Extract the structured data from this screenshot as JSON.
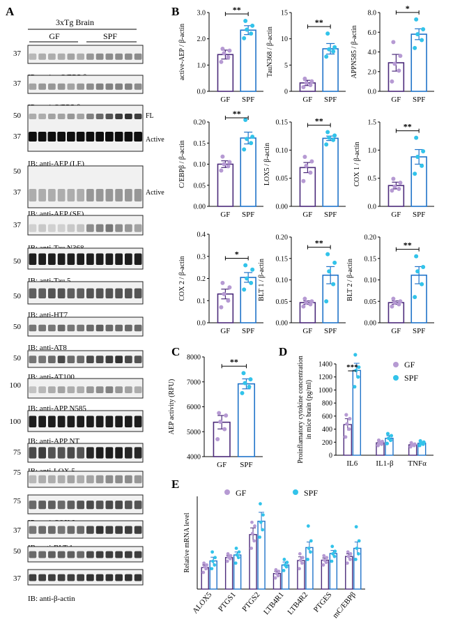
{
  "colors": {
    "gf": "#4b2a7a",
    "gf_dot": "#b69ad3",
    "spf": "#1f73c9",
    "spf_dot": "#32c3ea",
    "blot_dark": "#111111"
  },
  "panelA": {
    "letter": "A",
    "header": {
      "top": "3xTg   Brain",
      "gf": "GF",
      "spf": "SPF"
    },
    "blots": [
      {
        "labels": [
          "IB: anti-p-C/EBP β"
        ],
        "marks": [
          "37"
        ]
      },
      {
        "labels": [
          "IB: anti-C/EBP β"
        ],
        "marks": [
          "37"
        ]
      },
      {
        "labels": [
          "IB: anti-AEP (LE)"
        ],
        "marks": [
          "50",
          "37"
        ],
        "side": [
          "FL",
          "Active"
        ]
      },
      {
        "labels": [
          "IB: anti-AEP (SE)"
        ],
        "marks": [
          "50",
          "37"
        ],
        "side": [
          "",
          "Active"
        ]
      },
      {
        "labels": [
          "IB: anti-Tau N368"
        ],
        "marks": [
          "37"
        ]
      },
      {
        "labels": [
          "IB: anti-Tau 5"
        ],
        "marks": [
          "50"
        ]
      },
      {
        "labels": [
          "IB: anti-HT7"
        ],
        "marks": [
          "50"
        ]
      },
      {
        "labels": [
          "IB: anti-AT8"
        ],
        "marks": [
          "50"
        ]
      },
      {
        "labels": [
          "IB: anti-AT100"
        ],
        "marks": [
          "50"
        ]
      },
      {
        "labels": [
          "IB: anti-APP N585"
        ],
        "marks": [
          "100"
        ]
      },
      {
        "labels": [
          "IB: anti-APP NT"
        ],
        "marks": [
          "100"
        ]
      },
      {
        "labels": [
          "IB: anti-LOX 5"
        ],
        "marks": [
          "75"
        ]
      },
      {
        "labels": [
          "IB: anti-COX 1"
        ],
        "marks": [
          "75"
        ]
      },
      {
        "labels": [
          "IB: anti-COX 2"
        ],
        "marks": [
          "75"
        ]
      },
      {
        "labels": [
          "IB: anti-BLT 1"
        ],
        "marks": [
          "37"
        ]
      },
      {
        "labels": [
          "IB: anti-BLT 2"
        ],
        "marks": [
          "50"
        ]
      },
      {
        "labels": [
          "IB: anti-β-actin"
        ],
        "marks": [
          "37"
        ]
      }
    ]
  },
  "panel_letters": {
    "B": "B",
    "C": "C",
    "D": "D",
    "E": "E"
  },
  "chart_data": [
    {
      "id": "B1",
      "type": "bar",
      "ylabel": "active-AEP / β-actin",
      "categories": [
        "GF",
        "SPF"
      ],
      "yticks": [
        "0.0",
        "1.0",
        "2.0",
        "3.0"
      ],
      "ylim": [
        0,
        3
      ],
      "values": [
        1.4,
        2.33
      ],
      "errors": [
        0.17,
        0.17
      ],
      "points": [
        [
          1.12,
          1.3,
          1.45,
          1.55,
          1.62
        ],
        [
          2.02,
          2.2,
          2.35,
          2.5,
          2.68
        ]
      ],
      "sig": "**"
    },
    {
      "id": "B2",
      "type": "bar",
      "ylabel": "TauN368 / β-actin",
      "categories": [
        "GF",
        "SPF"
      ],
      "yticks": [
        "0",
        "5",
        "10",
        "15"
      ],
      "ylim": [
        0,
        15
      ],
      "values": [
        1.6,
        8.1
      ],
      "errors": [
        0.5,
        1.0
      ],
      "points": [
        [
          0.8,
          1.2,
          1.6,
          1.9,
          2.4
        ],
        [
          6.6,
          7.6,
          8.0,
          8.4,
          11.0
        ]
      ],
      "sig": "**"
    },
    {
      "id": "B3",
      "type": "bar",
      "ylabel": "APPN585 / β-actin",
      "categories": [
        "GF",
        "SPF"
      ],
      "yticks": [
        "0.0",
        "2.0",
        "4.0",
        "6.0",
        "8.0"
      ],
      "ylim": [
        0,
        8
      ],
      "values": [
        2.9,
        5.8
      ],
      "errors": [
        0.85,
        0.55
      ],
      "points": [
        [
          1.0,
          2.1,
          2.8,
          3.6,
          5.0
        ],
        [
          4.4,
          5.2,
          5.8,
          6.3,
          7.3
        ]
      ],
      "sig": "*"
    },
    {
      "id": "B4",
      "type": "bar",
      "ylabel": "C/EBPβ / β-actin",
      "categories": [
        "GF",
        "SPF"
      ],
      "yticks": [
        "0.00",
        "0.05",
        "0.10",
        "0.15",
        "0.20"
      ],
      "ylim": [
        0,
        0.2
      ],
      "values": [
        0.1,
        0.162
      ],
      "errors": [
        0.008,
        0.014
      ],
      "points": [
        [
          0.085,
          0.095,
          0.1,
          0.105,
          0.118
        ],
        [
          0.135,
          0.15,
          0.16,
          0.165,
          0.205
        ]
      ],
      "sig": "**"
    },
    {
      "id": "B5",
      "type": "bar",
      "ylabel": "LOX5 / β-actin",
      "categories": [
        "GF",
        "SPF"
      ],
      "yticks": [
        "0.00",
        "0.05",
        "0.10",
        "0.15"
      ],
      "ylim": [
        0,
        0.15
      ],
      "values": [
        0.069,
        0.121
      ],
      "errors": [
        0.009,
        0.004
      ],
      "points": [
        [
          0.045,
          0.06,
          0.072,
          0.08,
          0.088
        ],
        [
          0.11,
          0.118,
          0.122,
          0.126,
          0.132
        ]
      ],
      "sig": "**"
    },
    {
      "id": "B6",
      "type": "bar",
      "ylabel": "COX 1 / β-actin",
      "categories": [
        "GF",
        "SPF"
      ],
      "yticks": [
        "0.0",
        "0.5",
        "1.0",
        "1.5"
      ],
      "ylim": [
        0,
        1.5
      ],
      "values": [
        0.37,
        0.88
      ],
      "errors": [
        0.06,
        0.13
      ],
      "points": [
        [
          0.28,
          0.31,
          0.35,
          0.42,
          0.49
        ],
        [
          0.58,
          0.72,
          0.88,
          0.98,
          1.22
        ]
      ],
      "sig": "**"
    },
    {
      "id": "B7",
      "type": "bar",
      "ylabel": "COX 2 / β-actin",
      "categories": [
        "GF",
        "SPF"
      ],
      "yticks": [
        "0.0",
        "0.1",
        "0.2",
        "0.3",
        "0.4"
      ],
      "ylim": [
        0,
        0.4
      ],
      "values": [
        0.13,
        0.205
      ],
      "errors": [
        0.022,
        0.022
      ],
      "points": [
        [
          0.07,
          0.1,
          0.13,
          0.16,
          0.18
        ],
        [
          0.15,
          0.18,
          0.2,
          0.24,
          0.26
        ]
      ],
      "sig": "*"
    },
    {
      "id": "B8",
      "type": "bar",
      "ylabel": "BLT 1 / β-actin",
      "categories": [
        "GF",
        "SPF"
      ],
      "yticks": [
        "0.00",
        "0.05",
        "0.10",
        "0.15",
        "0.20"
      ],
      "ylim": [
        0,
        0.2
      ],
      "values": [
        0.047,
        0.111
      ],
      "errors": [
        0.004,
        0.02
      ],
      "points": [
        [
          0.038,
          0.043,
          0.047,
          0.05,
          0.056
        ],
        [
          0.05,
          0.09,
          0.12,
          0.14,
          0.16
        ]
      ],
      "sig": "**"
    },
    {
      "id": "B9",
      "type": "bar",
      "ylabel": "BLT 2 / β-actin",
      "categories": [
        "GF",
        "SPF"
      ],
      "yticks": [
        "0.00",
        "0.05",
        "0.10",
        "0.15",
        "0.20"
      ],
      "ylim": [
        0,
        0.2
      ],
      "values": [
        0.047,
        0.111
      ],
      "errors": [
        0.004,
        0.02
      ],
      "points": [
        [
          0.038,
          0.043,
          0.047,
          0.05,
          0.056
        ],
        [
          0.06,
          0.09,
          0.12,
          0.13,
          0.155
        ]
      ],
      "sig": "**"
    },
    {
      "id": "C",
      "type": "bar",
      "ylabel": "AEP activity (RFU)",
      "categories": [
        "GF",
        "SPF"
      ],
      "yticks": [
        "4000",
        "5000",
        "6000",
        "7000",
        "8000"
      ],
      "ylim": [
        4000,
        8000
      ],
      "values": [
        5380,
        6920
      ],
      "errors": [
        270,
        200
      ],
      "points": [
        [
          4700,
          5100,
          5400,
          5650,
          5750
        ],
        [
          6550,
          6800,
          6950,
          7100,
          7350
        ]
      ],
      "sig": "**"
    },
    {
      "id": "D",
      "type": "bar",
      "ylabel": [
        "Proinflamatory cytokine concentration",
        "in mice brain (pg/ml)"
      ],
      "categories": [
        "IL6",
        "IL1-β",
        "TNFα"
      ],
      "yticks": [
        "0",
        "200",
        "400",
        "600",
        "800",
        "1000",
        "1200",
        "1400"
      ],
      "ylim": [
        0,
        1400
      ],
      "series": [
        {
          "name": "GF",
          "values": [
            470,
            190,
            160
          ],
          "errors": [
            90,
            20,
            15
          ],
          "points": [
            [
              280,
              400,
              480,
              560,
              620
            ],
            [
              150,
              170,
              190,
              210,
              230
            ],
            [
              130,
              150,
              160,
              170,
              190
            ]
          ]
        },
        {
          "name": "SPF",
          "values": [
            1300,
            260,
            185
          ],
          "errors": [
            110,
            40,
            20
          ],
          "points": [
            [
              1050,
              1200,
              1300,
              1350,
              1540
            ],
            [
              180,
              230,
              260,
              300,
              330
            ],
            [
              150,
              170,
              185,
              200,
              220
            ]
          ]
        }
      ],
      "sig": [
        {
          "category": "IL6",
          "text": "***"
        }
      ]
    },
    {
      "id": "E",
      "type": "bar",
      "ylabel": "Relative mRNA level",
      "categories": [
        "ALOX5",
        "PTGS1",
        "PTGS2",
        "LTB4R1",
        "LTB4R2",
        "PTGES",
        "mC/EBPβ"
      ],
      "ylim": [
        0,
        2.5
      ],
      "series": [
        {
          "name": "GF",
          "values": [
            0.58,
            0.85,
            1.47,
            0.42,
            0.77,
            0.78,
            0.88
          ],
          "errors": [
            0.07,
            0.05,
            0.18,
            0.06,
            0.1,
            0.06,
            0.07
          ],
          "points": [
            [
              0.45,
              0.55,
              0.6,
              0.65,
              0.7
            ],
            [
              0.75,
              0.82,
              0.86,
              0.9,
              0.95
            ],
            [
              1.1,
              1.3,
              1.5,
              1.7,
              1.8
            ],
            [
              0.3,
              0.36,
              0.42,
              0.48,
              0.52
            ],
            [
              0.55,
              0.7,
              0.78,
              0.85,
              0.95
            ],
            [
              0.65,
              0.72,
              0.78,
              0.85,
              0.9
            ],
            [
              0.7,
              0.8,
              0.88,
              0.95,
              1.0
            ]
          ]
        },
        {
          "name": "SPF",
          "values": [
            0.76,
            0.92,
            1.83,
            0.65,
            1.12,
            0.96,
            1.1
          ],
          "errors": [
            0.1,
            0.08,
            0.24,
            0.08,
            0.15,
            0.08,
            0.17
          ],
          "points": [
            [
              0.55,
              0.65,
              0.75,
              0.85,
              1.0
            ],
            [
              0.7,
              0.85,
              0.92,
              1.0,
              1.1
            ],
            [
              1.4,
              1.6,
              1.8,
              2.0,
              2.3
            ],
            [
              0.5,
              0.6,
              0.65,
              0.72,
              0.8
            ],
            [
              0.8,
              1.0,
              1.1,
              1.3,
              1.7
            ],
            [
              0.75,
              0.88,
              0.95,
              1.02,
              1.15
            ],
            [
              0.8,
              0.95,
              1.1,
              1.3,
              1.68
            ]
          ]
        }
      ]
    }
  ]
}
